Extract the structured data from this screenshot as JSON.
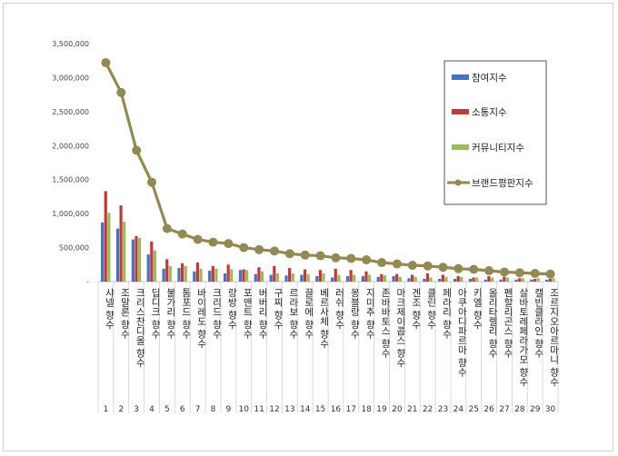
{
  "chart_data": {
    "type": "bar",
    "title": "",
    "xlabel": "",
    "ylabel": "",
    "ylim": [
      0,
      3500000
    ],
    "y_ticks": [
      "-",
      "500,000",
      "1,000,000",
      "1,500,000",
      "2,000,000",
      "2,500,000",
      "3,000,000",
      "3,500,000"
    ],
    "grid": false,
    "legend_position": "top-right",
    "numbers": [
      "1",
      "2",
      "3",
      "4",
      "5",
      "6",
      "7",
      "8",
      "9",
      "10",
      "11",
      "12",
      "13",
      "14",
      "15",
      "16",
      "17",
      "18",
      "19",
      "20",
      "21",
      "22",
      "23",
      "24",
      "25",
      "26",
      "27",
      "28",
      "29",
      "30"
    ],
    "categories": [
      "샤넬 향수",
      "조말론 향수",
      "크리스찬디올 향수",
      "딥디크 향수",
      "불가리 향수",
      "톰포드 향수",
      "바이레도 향수",
      "크리드 향수",
      "랑방 향수",
      "포맨트 향수",
      "버버리 향수",
      "구찌 향수",
      "르라보 향수",
      "끌로에 향수",
      "베르사체 향수",
      "러쉬 향수",
      "몽블랑 향수",
      "지미추 향수",
      "존바바토스 향수",
      "마크제이콥스 향수",
      "겐조 향수",
      "클린 향수",
      "페라리 향수",
      "아쿠아디파르마 향수",
      "키엘 향수",
      "올리타렐리 향수",
      "펜할리곤스 향수",
      "살바토레페라가모 향수",
      "캘빈클라인 향수",
      "조르지오아르마니 향수"
    ],
    "series": [
      {
        "name": "참여지수",
        "type": "bar",
        "color": "#4472c4",
        "values": [
          870000,
          780000,
          620000,
          400000,
          190000,
          200000,
          150000,
          160000,
          120000,
          170000,
          110000,
          100000,
          90000,
          100000,
          80000,
          60000,
          80000,
          80000,
          70000,
          80000,
          50000,
          40000,
          40000,
          40000,
          40000,
          30000,
          30000,
          30000,
          30000,
          30000
        ]
      },
      {
        "name": "소통지수",
        "type": "bar",
        "color": "#c0393b",
        "values": [
          1330000,
          1120000,
          670000,
          590000,
          330000,
          270000,
          280000,
          230000,
          250000,
          180000,
          210000,
          230000,
          200000,
          180000,
          170000,
          190000,
          170000,
          150000,
          110000,
          110000,
          100000,
          120000,
          100000,
          80000,
          60000,
          80000,
          70000,
          50000,
          40000,
          40000
        ]
      },
      {
        "name": "커뮤니티지수",
        "type": "bar",
        "color": "#9bbb59",
        "values": [
          1010000,
          880000,
          640000,
          460000,
          230000,
          230000,
          190000,
          190000,
          180000,
          170000,
          150000,
          120000,
          120000,
          110000,
          120000,
          100000,
          100000,
          100000,
          90000,
          70000,
          70000,
          60000,
          70000,
          70000,
          60000,
          60000,
          60000,
          50000,
          50000,
          50000
        ]
      },
      {
        "name": "브랜드평판지수",
        "type": "line",
        "color": "#938953",
        "values": [
          3220000,
          2780000,
          1930000,
          1460000,
          780000,
          700000,
          620000,
          580000,
          560000,
          500000,
          470000,
          450000,
          410000,
          390000,
          380000,
          350000,
          340000,
          320000,
          280000,
          260000,
          240000,
          230000,
          210000,
          190000,
          180000,
          160000,
          140000,
          130000,
          120000,
          110000
        ]
      }
    ]
  }
}
